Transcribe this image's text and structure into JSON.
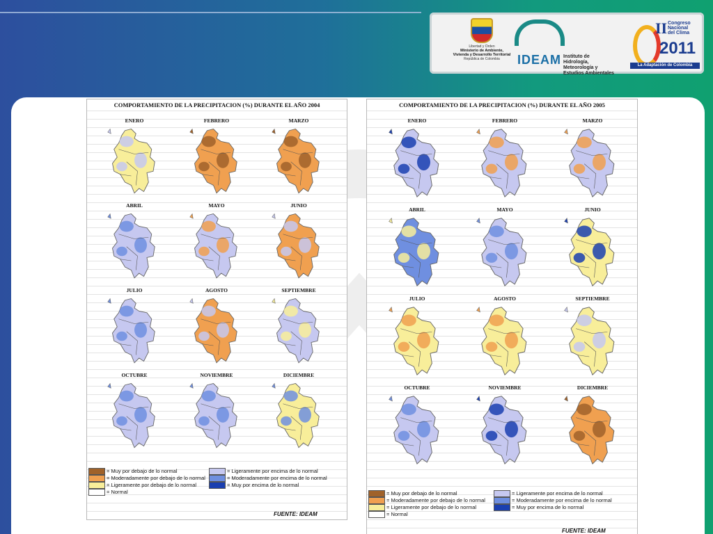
{
  "colors": {
    "muy_debajo": "#a0622a",
    "mod_debajo": "#f0a050",
    "lig_debajo": "#f8ee9a",
    "normal": "#ffffff",
    "lig_encima": "#c6c8f0",
    "mod_encima": "#6f8fe0",
    "muy_encima": "#1a3fb0"
  },
  "logos": {
    "ministerio": {
      "line1": "Libertad y Orden",
      "line2": "Ministerio de Ambiente,",
      "line3": "Vivienda y Desarrollo Territorial",
      "line4": "República de Colombia"
    },
    "ideam": {
      "name": "IDEAM",
      "inst1": "Instituto de Hidrología,",
      "inst2": "Meteorología y",
      "inst3": "Estudios Ambientales"
    },
    "congreso": {
      "numeral": "II",
      "line1": "Congreso",
      "line2": "Nacional",
      "line3": "del Clima",
      "year": "2011",
      "tagline": "La Adaptación de Colombia"
    }
  },
  "panels": [
    {
      "title": "COMPORTAMIENTO DE LA PRECIPITACION (%) DURANTE EL AÑO 2004",
      "months": [
        {
          "name": "ENERO",
          "dominant": "lig_debajo",
          "accent": "lig_encima"
        },
        {
          "name": "FEBRERO",
          "dominant": "mod_debajo",
          "accent": "muy_debajo"
        },
        {
          "name": "MARZO",
          "dominant": "mod_debajo",
          "accent": "muy_debajo"
        },
        {
          "name": "ABRIL",
          "dominant": "lig_encima",
          "accent": "mod_encima"
        },
        {
          "name": "MAYO",
          "dominant": "lig_encima",
          "accent": "mod_debajo"
        },
        {
          "name": "JUNIO",
          "dominant": "mod_debajo",
          "accent": "lig_encima"
        },
        {
          "name": "JULIO",
          "dominant": "lig_encima",
          "accent": "mod_encima"
        },
        {
          "name": "AGOSTO",
          "dominant": "mod_debajo",
          "accent": "lig_encima"
        },
        {
          "name": "SEPTIEMBRE",
          "dominant": "lig_encima",
          "accent": "lig_debajo"
        },
        {
          "name": "OCTUBRE",
          "dominant": "lig_encima",
          "accent": "mod_encima"
        },
        {
          "name": "NOVIEMBRE",
          "dominant": "lig_encima",
          "accent": "mod_encima"
        },
        {
          "name": "DICIEMBRE",
          "dominant": "lig_debajo",
          "accent": "mod_encima"
        }
      ],
      "legend": [
        {
          "color": "muy_debajo",
          "label": "= Muy por debajo de lo normal"
        },
        {
          "color": "mod_debajo",
          "label": "= Moderadamente por debajo de lo normal"
        },
        {
          "color": "lig_debajo",
          "label": "= Ligeramente por debajo de lo normal"
        },
        {
          "color": "normal",
          "label": "= Normal"
        },
        {
          "color": "lig_encima",
          "label": "= Ligeramente por encima de lo normal"
        },
        {
          "color": "mod_encima",
          "label": "= Moderadamente por encima de lo normal"
        },
        {
          "color": "muy_encima",
          "label": "= Muy por encima de lo normal"
        }
      ],
      "source": "FUENTE: IDEAM"
    },
    {
      "title": "COMPORTAMIENTO DE LA PRECIPITACION (%) DURANTE EL AÑO 2005",
      "months": [
        {
          "name": "ENERO",
          "dominant": "lig_encima",
          "accent": "muy_encima"
        },
        {
          "name": "FEBRERO",
          "dominant": "lig_encima",
          "accent": "mod_debajo"
        },
        {
          "name": "MARZO",
          "dominant": "lig_encima",
          "accent": "mod_debajo"
        },
        {
          "name": "ABRIL",
          "dominant": "mod_encima",
          "accent": "lig_debajo"
        },
        {
          "name": "MAYO",
          "dominant": "lig_encima",
          "accent": "mod_encima"
        },
        {
          "name": "JUNIO",
          "dominant": "lig_debajo",
          "accent": "muy_encima"
        },
        {
          "name": "JULIO",
          "dominant": "lig_debajo",
          "accent": "mod_debajo"
        },
        {
          "name": "AGOSTO",
          "dominant": "lig_debajo",
          "accent": "mod_debajo"
        },
        {
          "name": "SEPTIEMBRE",
          "dominant": "lig_debajo",
          "accent": "lig_encima"
        },
        {
          "name": "OCTUBRE",
          "dominant": "lig_encima",
          "accent": "mod_encima"
        },
        {
          "name": "NOVIEMBRE",
          "dominant": "lig_encima",
          "accent": "muy_encima"
        },
        {
          "name": "DICIEMBRE",
          "dominant": "mod_debajo",
          "accent": "muy_debajo"
        }
      ],
      "legend": [
        {
          "color": "muy_debajo",
          "label": "= Muy por debajo de lo normal"
        },
        {
          "color": "mod_debajo",
          "label": "= Moderadamente por debajo de lo normal"
        },
        {
          "color": "lig_debajo",
          "label": "= Ligeramente por debajo de lo normal"
        },
        {
          "color": "normal",
          "label": "= Normal"
        },
        {
          "color": "lig_encima",
          "label": "= Ligeramente por encima de lo normal"
        },
        {
          "color": "mod_encima",
          "label": "= Moderadamente por encima de lo normal"
        },
        {
          "color": "muy_encima",
          "label": "= Muy por encima de lo normal"
        }
      ],
      "source": "FUENTE: IDEAM"
    }
  ]
}
